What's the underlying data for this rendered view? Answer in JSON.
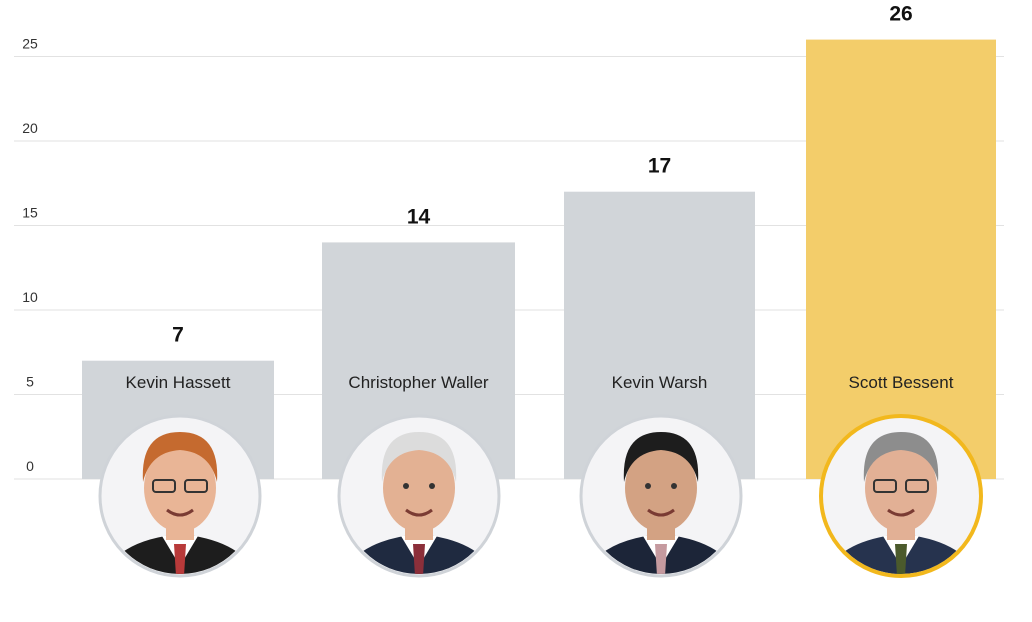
{
  "chart_data": {
    "type": "bar",
    "categories": [
      "Kevin Hassett",
      "Christopher Waller",
      "Kevin Warsh",
      "Scott Bessent"
    ],
    "values": [
      7,
      14,
      17,
      26
    ],
    "value_labels": [
      "7",
      "14",
      "17",
      "26"
    ],
    "highlight_index": 3,
    "ylim": [
      0,
      26
    ],
    "yticks": [
      0,
      5,
      10,
      15,
      20,
      25
    ],
    "ytick_labels": [
      "0",
      "5",
      "10",
      "15",
      "20",
      "25"
    ],
    "grid": true,
    "title": "",
    "xlabel": "",
    "ylabel": ""
  },
  "colors": {
    "bar_default": "#d1d5d9",
    "bar_highlight": "#f3cd6a",
    "portrait_ring_default": "#cfd3d8",
    "portrait_ring_highlight": "#f2b81d",
    "grid": "#e2e2e2"
  },
  "portraits": [
    {
      "name": "Kevin Hassett",
      "icon": "person-portrait-icon"
    },
    {
      "name": "Christopher Waller",
      "icon": "person-portrait-icon"
    },
    {
      "name": "Kevin Warsh",
      "icon": "person-portrait-icon"
    },
    {
      "name": "Scott Bessent",
      "icon": "person-portrait-icon"
    }
  ]
}
